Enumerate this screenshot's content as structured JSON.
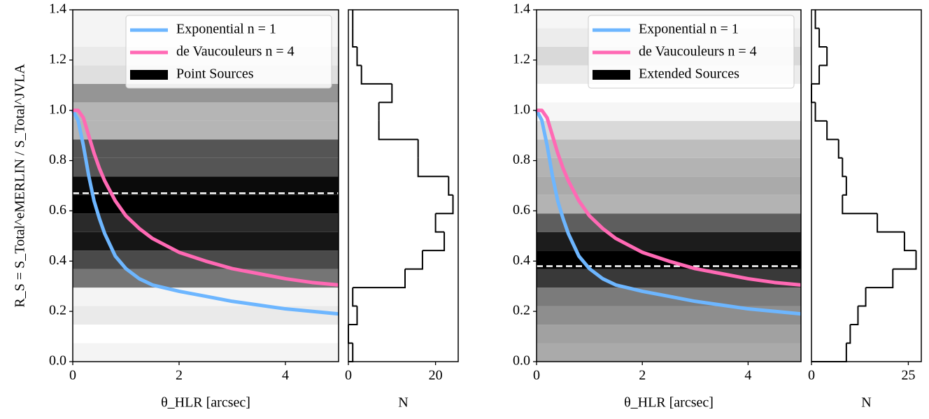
{
  "chart_data": [
    {
      "type": "line",
      "x_label": "θ_HLR [arcsec]",
      "y_label": "R_S = S_Total^eMERLIN / S_Total^JVLA",
      "x": [
        0,
        0.1,
        0.2,
        0.3,
        0.4,
        0.5,
        0.6,
        0.8,
        1.0,
        1.25,
        1.5,
        2,
        2.5,
        3,
        3.5,
        4,
        4.5,
        5
      ],
      "series": [
        {
          "name": "Exponential n = 1",
          "color": "#6db6ff",
          "values": [
            1.0,
            0.96,
            0.86,
            0.74,
            0.64,
            0.57,
            0.51,
            0.42,
            0.37,
            0.33,
            0.305,
            0.28,
            0.26,
            0.24,
            0.225,
            0.21,
            0.2,
            0.19
          ]
        },
        {
          "name": "de Vaucouleurs n = 4",
          "color": "#ff69b4",
          "values": [
            1.0,
            1.0,
            0.97,
            0.9,
            0.83,
            0.77,
            0.72,
            0.64,
            0.58,
            0.53,
            0.49,
            0.435,
            0.4,
            0.37,
            0.35,
            0.33,
            0.315,
            0.305
          ]
        }
      ],
      "band_label": "Point Sources",
      "band_color": "#000000",
      "reference_line": 0.67,
      "xlim": [
        0,
        5
      ],
      "xticks": [
        0,
        2,
        4
      ],
      "ylim": [
        0,
        1.4
      ],
      "yticks": [
        {
          "value": 0,
          "label": "0.0"
        },
        0.2,
        0.4,
        0.6,
        0.8,
        {
          "value": 1,
          "label": "1.0"
        },
        1.2,
        1.4
      ],
      "legend": "upper right"
    },
    {
      "type": "histogram",
      "orientation": "horizontal",
      "x_label": "N",
      "bins": [
        0,
        0.0737,
        0.1474,
        0.2211,
        0.2947,
        0.3684,
        0.4421,
        0.5158,
        0.5895,
        0.6632,
        0.7368,
        0.8105,
        0.8842,
        0.9579,
        1.0316,
        1.1053,
        1.1789,
        1.2526,
        1.3263,
        1.4
      ],
      "counts": [
        1,
        0,
        2,
        1,
        13,
        17,
        22,
        20,
        24,
        23,
        16,
        16,
        7,
        7,
        10,
        3,
        2,
        1,
        1
      ],
      "xlim": [
        0,
        25.2
      ],
      "xticks": [
        0,
        20
      ],
      "ylim": [
        0,
        1.4
      ]
    },
    {
      "type": "line",
      "x_label": "θ_HLR [arcsec]",
      "x": [
        0,
        0.1,
        0.2,
        0.3,
        0.4,
        0.5,
        0.6,
        0.8,
        1.0,
        1.25,
        1.5,
        2,
        2.5,
        3,
        3.5,
        4,
        4.5,
        5
      ],
      "series": [
        {
          "name": "Exponential n = 1",
          "color": "#6db6ff",
          "values": [
            1.0,
            0.96,
            0.86,
            0.74,
            0.64,
            0.57,
            0.51,
            0.42,
            0.37,
            0.33,
            0.305,
            0.28,
            0.26,
            0.24,
            0.225,
            0.21,
            0.2,
            0.19
          ]
        },
        {
          "name": "de Vaucouleurs n = 4",
          "color": "#ff69b4",
          "values": [
            1.0,
            1.0,
            0.97,
            0.9,
            0.83,
            0.77,
            0.72,
            0.64,
            0.58,
            0.53,
            0.49,
            0.435,
            0.4,
            0.37,
            0.35,
            0.33,
            0.315,
            0.305
          ]
        }
      ],
      "band_label": "Extended Sources",
      "band_color": "#000000",
      "reference_line": 0.38,
      "xlim": [
        0,
        5
      ],
      "xticks": [
        0,
        2,
        4
      ],
      "ylim": [
        0,
        1.4
      ],
      "yticks": [
        {
          "value": 0,
          "label": "0.0"
        },
        0.2,
        0.4,
        0.6,
        0.8,
        {
          "value": 1,
          "label": "1.0"
        },
        1.2,
        1.4
      ],
      "legend": "upper right"
    },
    {
      "type": "histogram",
      "orientation": "horizontal",
      "x_label": "N",
      "bins": [
        0,
        0.0737,
        0.1474,
        0.2211,
        0.2947,
        0.3684,
        0.4421,
        0.5158,
        0.5895,
        0.6632,
        0.7368,
        0.8105,
        0.8842,
        0.9579,
        1.0316,
        1.1053,
        1.1789,
        1.2526,
        1.3263,
        1.4
      ],
      "counts": [
        9,
        10,
        12,
        14,
        21,
        27,
        24,
        17,
        8,
        9,
        8,
        7,
        4,
        1,
        0,
        2,
        4,
        2,
        1
      ],
      "xlim": [
        0,
        28.35
      ],
      "xticks": [
        0,
        25
      ],
      "ylim": [
        0,
        1.4
      ]
    }
  ]
}
